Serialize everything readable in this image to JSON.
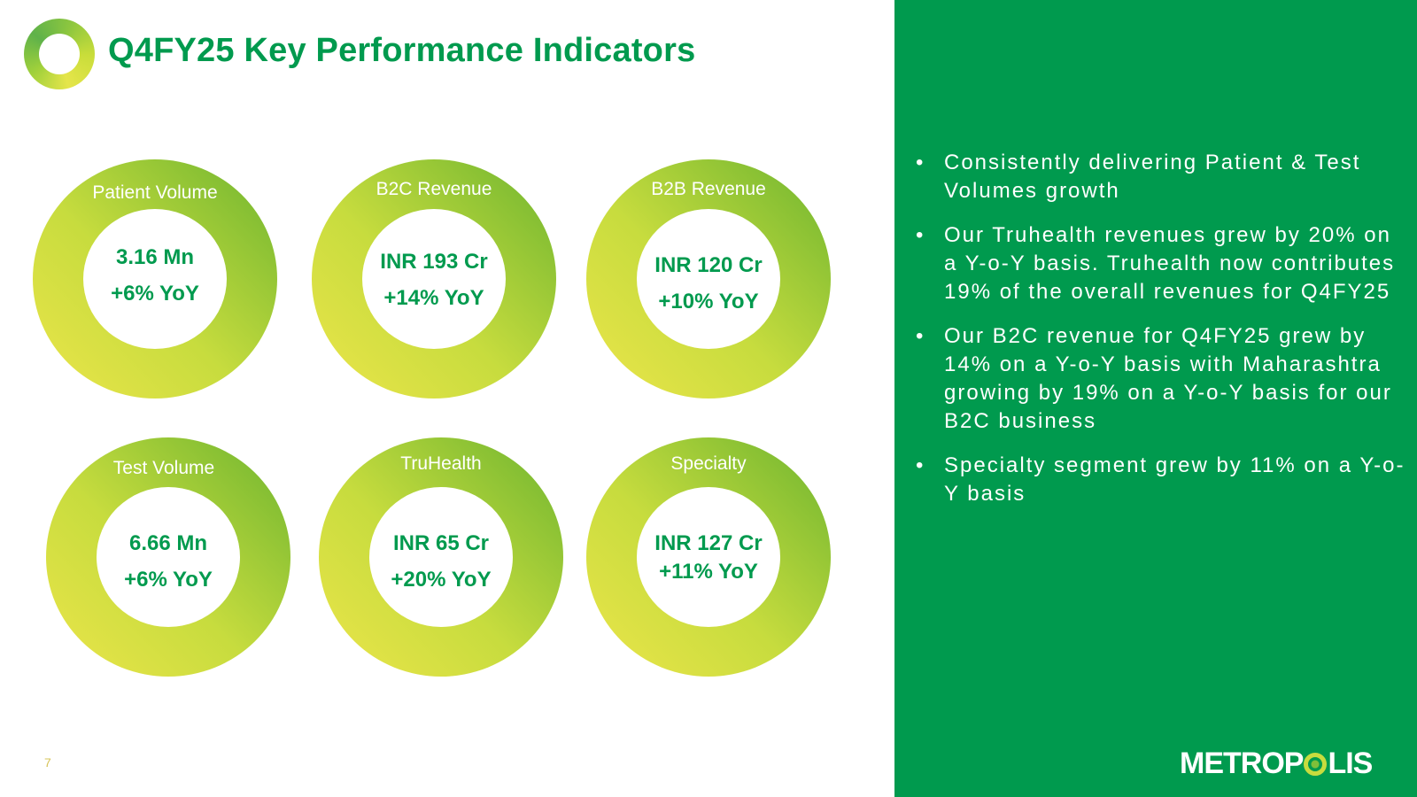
{
  "title": "Q4FY25 Key Performance Indicators",
  "colors": {
    "primary_green": "#009a4e",
    "gradient_yellow": "#ece54a",
    "gradient_green": "#6cb42f"
  },
  "kpis": [
    {
      "label": "Patient Volume",
      "value": "3.16 Mn",
      "yoy": "+6% YoY"
    },
    {
      "label": "B2C Revenue",
      "value": "INR 193 Cr",
      "yoy": "+14% YoY"
    },
    {
      "label": "B2B Revenue",
      "value": "INR 120 Cr",
      "yoy": "+10% YoY"
    },
    {
      "label": "Test Volume",
      "value": "6.66 Mn",
      "yoy": "+6% YoY"
    },
    {
      "label": "TruHealth",
      "value": "INR 65 Cr",
      "yoy": "+20% YoY"
    },
    {
      "label": "Specialty",
      "value": "INR 127 Cr",
      "yoy": "+11% YoY"
    }
  ],
  "bullet_char": "•",
  "bullets": [
    "Consistently delivering Patient & Test Volumes growth",
    "Our Truhealth revenues grew by 20% on a Y-o-Y basis. Truhealth now contributes 19% of the overall revenues for Q4FY25",
    "Our B2C revenue for Q4FY25 grew by 14% on a Y-o-Y basis with Maharashtra growing by 19% on a Y-o-Y basis for our B2C business",
    "Specialty segment grew by 11% on a Y-o-Y basis"
  ],
  "page_number": "7",
  "brand": {
    "part1": "METROP",
    "part2": "LIS"
  }
}
